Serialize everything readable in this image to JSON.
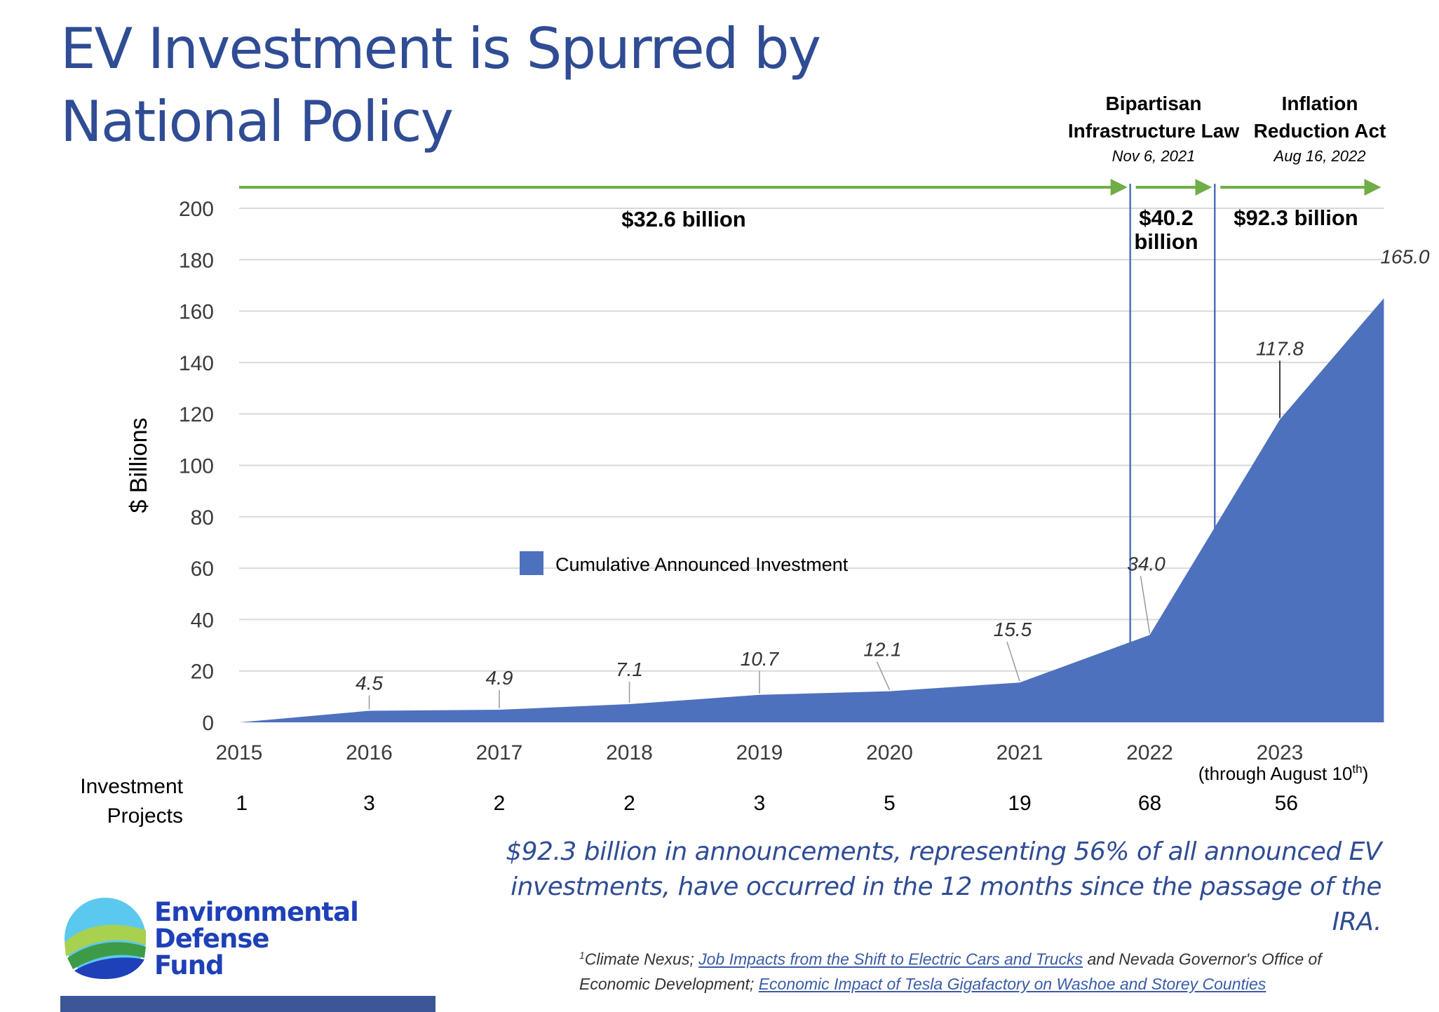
{
  "title": [
    "EV Investment is Spurred by",
    "National Policy"
  ],
  "chart_data": {
    "type": "area",
    "x": [
      2015,
      2016,
      2017,
      2018,
      2019,
      2020,
      2021,
      2022,
      2023,
      2023.8
    ],
    "values": [
      0,
      4.5,
      4.9,
      7.1,
      10.7,
      12.1,
      15.5,
      34.0,
      117.8,
      165.0
    ],
    "value_labels": [
      "",
      "4.5",
      "4.9",
      "7.1",
      "10.7",
      "12.1",
      "15.5",
      "34.0",
      "117.8",
      "165.0"
    ],
    "series": [
      {
        "name": "Cumulative Announced Investment",
        "color": "#4E71BE"
      }
    ],
    "ylabel": "$ Billions",
    "ylim": [
      0,
      200
    ],
    "yticks": [
      0,
      20,
      40,
      60,
      80,
      100,
      120,
      140,
      160,
      180,
      200
    ],
    "xtick_labels": [
      "2015",
      "2016",
      "2017",
      "2018",
      "2019",
      "2020",
      "2021",
      "2022",
      "2023"
    ],
    "xtick_note": "(through August 10",
    "xtick_note_sup": "th",
    "xtick_note_end": ")",
    "grid": true,
    "legend_position": "center-left",
    "projects_label": [
      "Investment",
      "Projects"
    ],
    "projects": [
      "1",
      "3",
      "2",
      "2",
      "3",
      "5",
      "19",
      "68",
      "56"
    ],
    "policy_lines": [
      {
        "name": "Bipartisan Infrastructure Law",
        "date": "Nov 6, 2021",
        "x": 2021.85
      },
      {
        "name": "Inflation Reduction Act",
        "date": "Aug 16, 2022",
        "x": 2022.5
      }
    ],
    "policy_headers": [
      {
        "lines": [
          "Bipartisan",
          "Infrastructure Law"
        ],
        "date": "Nov 6, 2021"
      },
      {
        "lines": [
          "Inflation",
          "Reduction Act"
        ],
        "date": "Aug 16, 2022"
      }
    ],
    "periods": [
      {
        "x_start": 2015,
        "x_end": 2021.85,
        "label": [
          "$32.6 billion"
        ]
      },
      {
        "x_start": 2021.85,
        "x_end": 2022.5,
        "label": [
          "$40.2",
          "billion"
        ]
      },
      {
        "x_start": 2022.5,
        "x_end": 2023.8,
        "label": [
          "$92.3 billion"
        ]
      }
    ],
    "colors": {
      "area": "#4E71BE",
      "arrow": "#70AD47",
      "policy_line": "#4E71BE",
      "grid": "#D9D9D9"
    }
  },
  "caption": [
    "$92.3 billion in announcements, representing 56% of all announced EV",
    "investments, have occurred in the 12 months since the passage of the IRA."
  ],
  "footnote": {
    "marker": "1",
    "line1_prefix": "Climate Nexus; ",
    "link1": "Job Impacts from the Shift to Electric Cars and Trucks",
    "line1_suffix": " and Nevada Governor's Office of",
    "line2_prefix": "Economic Development; ",
    "link2": "Economic Impact of Tesla Gigafactory on Washoe and Storey Counties"
  },
  "logo": {
    "text": [
      "Environmental",
      "Defense",
      "Fund"
    ],
    "colors": {
      "text": "#1E40B8",
      "sky": "#5BC8F0",
      "lime": "#A8D14F",
      "green": "#3D9A47",
      "blue": "#1E40B8"
    }
  }
}
